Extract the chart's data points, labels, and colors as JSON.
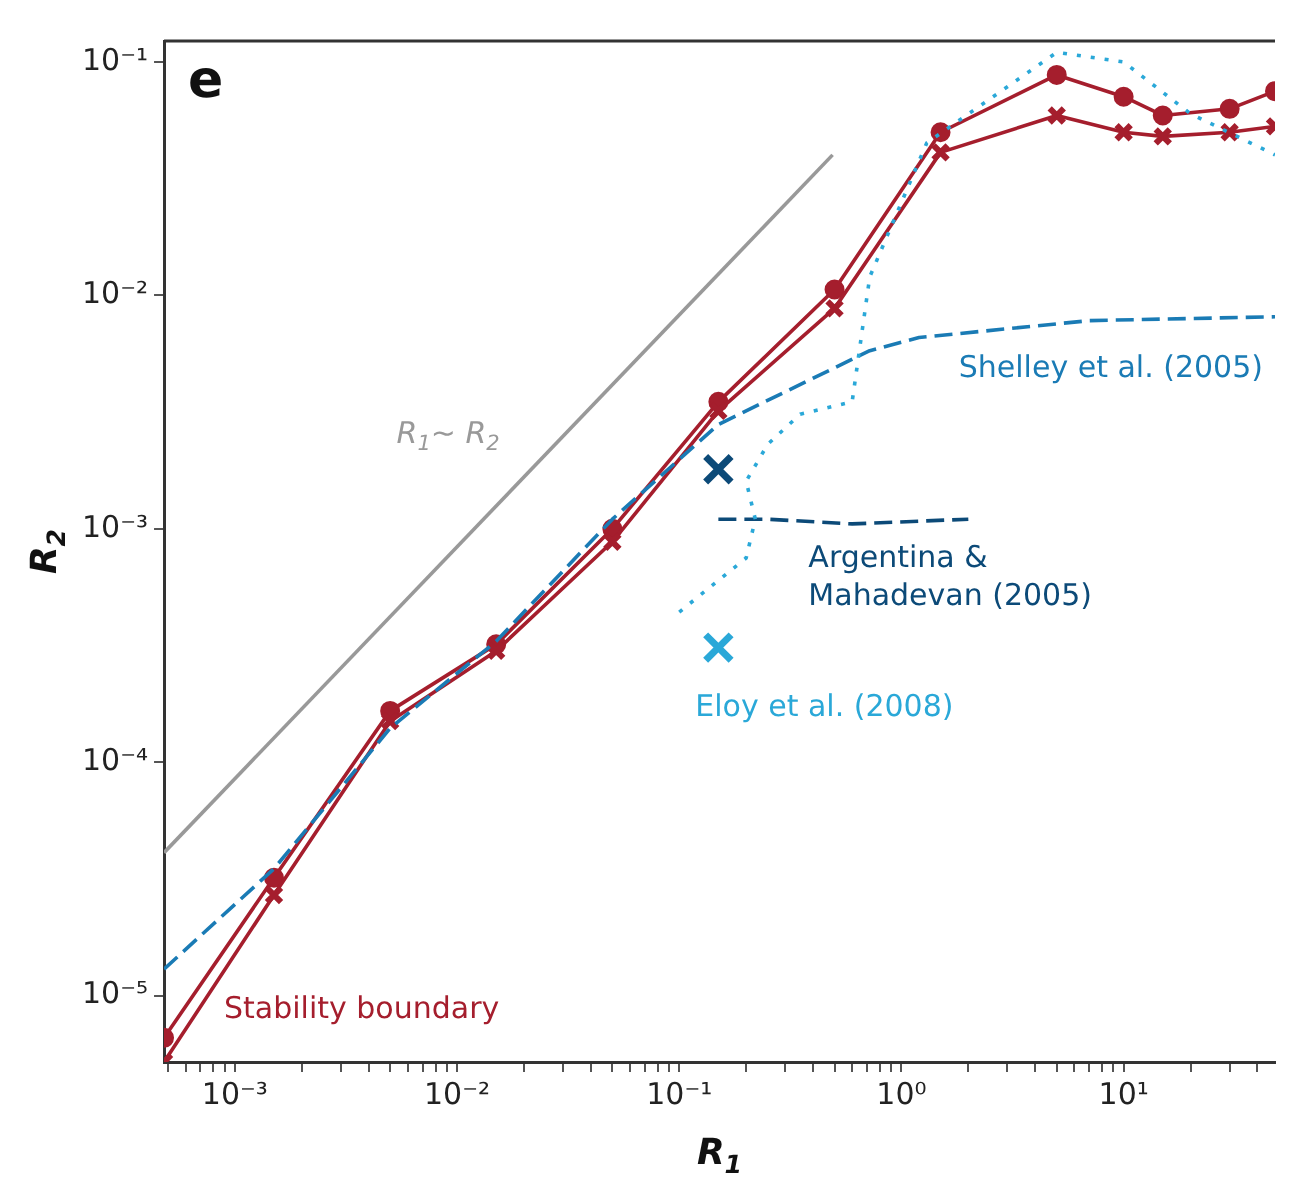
{
  "chart_data": {
    "type": "line",
    "xlabel": "R$_{1}$",
    "ylabel": "R$_{2}$",
    "annotations": [
      "e"
    ],
    "log": "xy",
    "grid": false,
    "legend": false,
    "xlim": [
      0.00048,
      48
    ],
    "ylim": [
      5.2e-06,
      0.123
    ],
    "xticks": [
      {
        "value": 0.0005,
        "label": null
      },
      {
        "value": 0.0006,
        "label": null
      },
      {
        "value": 0.0007,
        "label": null
      },
      {
        "value": 0.0008,
        "label": null
      },
      {
        "value": 0.0009,
        "label": null
      },
      {
        "value": 0.001,
        "label": "10⁻³"
      },
      {
        "value": 0.002,
        "label": null
      },
      {
        "value": 0.003,
        "label": null
      },
      {
        "value": 0.004,
        "label": null
      },
      {
        "value": 0.005,
        "label": null
      },
      {
        "value": 0.006,
        "label": null
      },
      {
        "value": 0.007,
        "label": null
      },
      {
        "value": 0.008,
        "label": null
      },
      {
        "value": 0.009,
        "label": null
      },
      {
        "value": 0.01,
        "label": "10⁻²"
      },
      {
        "value": 0.02,
        "label": null
      },
      {
        "value": 0.03,
        "label": null
      },
      {
        "value": 0.04,
        "label": null
      },
      {
        "value": 0.05,
        "label": null
      },
      {
        "value": 0.06,
        "label": null
      },
      {
        "value": 0.07,
        "label": null
      },
      {
        "value": 0.08,
        "label": null
      },
      {
        "value": 0.09,
        "label": null
      },
      {
        "value": 0.1,
        "label": "10⁻¹"
      },
      {
        "value": 0.2,
        "label": null
      },
      {
        "value": 0.3,
        "label": null
      },
      {
        "value": 0.4,
        "label": null
      },
      {
        "value": 0.5,
        "label": null
      },
      {
        "value": 0.6,
        "label": null
      },
      {
        "value": 0.7,
        "label": null
      },
      {
        "value": 0.8,
        "label": null
      },
      {
        "value": 0.9,
        "label": null
      },
      {
        "value": 1,
        "label": "10⁰"
      },
      {
        "value": 2,
        "label": null
      },
      {
        "value": 3,
        "label": null
      },
      {
        "value": 4,
        "label": null
      },
      {
        "value": 5,
        "label": null
      },
      {
        "value": 6,
        "label": null
      },
      {
        "value": 7,
        "label": null
      },
      {
        "value": 8,
        "label": null
      },
      {
        "value": 9,
        "label": null
      },
      {
        "value": 10,
        "label": "10¹"
      },
      {
        "value": 20,
        "label": null
      },
      {
        "value": 30,
        "label": null
      },
      {
        "value": 40,
        "label": null
      }
    ],
    "yticks": [
      {
        "value": 1e-05,
        "label": "10⁻⁵"
      },
      {
        "value": 0.0001,
        "label": "10⁻⁴"
      },
      {
        "value": 0.001,
        "label": "10⁻³"
      },
      {
        "value": 0.01,
        "label": "10⁻²"
      },
      {
        "value": 0.1,
        "label": "10⁻¹"
      }
    ],
    "series": [
      {
        "name": "Stability boundary",
        "type": "line",
        "color": "#a51e2d",
        "marker": "circle",
        "line_style": "solid",
        "x": [
          0.00048,
          0.0015,
          0.005,
          0.015,
          0.05,
          0.15,
          0.5,
          1.5,
          5,
          10,
          15,
          30,
          48
        ],
        "values": [
          6.6e-06,
          3.2e-05,
          0.000166,
          0.00032,
          0.001,
          0.0035,
          0.0106,
          0.05,
          0.088,
          0.071,
          0.059,
          0.063,
          0.075
        ]
      },
      {
        "type": "line",
        "color": "#a51e2d",
        "marker": "cross",
        "line_style": "solid",
        "x": [
          0.00048,
          0.0015,
          0.005,
          0.015,
          0.05,
          0.15,
          0.5,
          1.5,
          5,
          10,
          15,
          30,
          48
        ],
        "values": [
          5.2e-06,
          2.7e-05,
          0.00015,
          0.0003,
          0.00088,
          0.0032,
          0.0088,
          0.041,
          0.059,
          0.05,
          0.048,
          0.05,
          0.053
        ]
      },
      {
        "name": "Shelley et al. (2005)",
        "type": "line",
        "color": "#1a7bb5",
        "marker": "none",
        "line_style": "dashed",
        "x": [
          0.00048,
          0.0015,
          0.005,
          0.015,
          0.05,
          0.15,
          0.72,
          1.2,
          7,
          48
        ],
        "values": [
          1.3e-05,
          3.5e-05,
          0.00014,
          0.00033,
          0.0011,
          0.0028,
          0.0058,
          0.0066,
          0.0078,
          0.0081
        ]
      },
      {
        "name": "Argentina & Mahadevan (2005)",
        "type": "line",
        "color": "#0c4a78",
        "marker": "none",
        "line_style": "dashed",
        "x": [
          0.15,
          0.25,
          0.6,
          2
        ],
        "values": [
          0.0011,
          0.0011,
          0.00105,
          0.0011
        ]
      },
      {
        "name": "Eloy et al. (2008)",
        "type": "line",
        "color": "#2aa8d8",
        "marker": "none",
        "line_style": "dotted",
        "x": [
          0.1,
          0.2,
          0.22,
          0.2,
          0.25,
          0.35,
          0.6,
          0.72,
          1.3,
          5,
          10,
          20,
          48
        ],
        "values": [
          0.00044,
          0.00075,
          0.0011,
          0.0016,
          0.0023,
          0.0031,
          0.0035,
          0.012,
          0.045,
          0.11,
          0.1,
          0.06,
          0.04
        ]
      },
      {
        "type": "scatter",
        "color": "#0c4a78",
        "marker": "cross",
        "x": [
          0.15
        ],
        "values": [
          0.0018
        ]
      },
      {
        "type": "scatter",
        "color": "#2aa8d8",
        "marker": "cross",
        "x": [
          0.15
        ],
        "values": [
          0.00031
        ]
      },
      {
        "name": "R$_{1}$~ R$_{2}$",
        "type": "line",
        "color": "#999999",
        "marker": "none",
        "line_style": "solid",
        "x": [
          0.00048,
          0.49
        ],
        "values": [
          4.1e-05,
          0.04
        ]
      }
    ]
  }
}
